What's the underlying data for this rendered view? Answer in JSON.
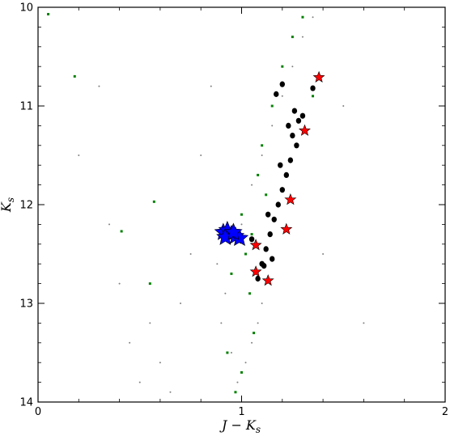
{
  "chart_data": {
    "type": "scatter",
    "title": "",
    "xlabel": "J − K",
    "xlabel_sub": "s",
    "ylabel": "K",
    "ylabel_sub": "s",
    "xlim": [
      0,
      2
    ],
    "ylim": [
      14,
      10
    ],
    "y_inverted": true,
    "grid": false,
    "legend": "none",
    "x_ticks": [
      0,
      1,
      2
    ],
    "y_ticks": [
      10,
      11,
      12,
      13,
      14
    ],
    "colors": {
      "field": "#808080",
      "members": "#008000",
      "black_stars": "#000000",
      "red_stars": "#ff0000",
      "clump": "#0000ff"
    },
    "series": [
      {
        "marker": "small-dot",
        "color": "#808080",
        "points": [
          [
            0.98,
            13.8
          ],
          [
            1.02,
            13.6
          ],
          [
            1.05,
            13.4
          ],
          [
            1.08,
            13.2
          ],
          [
            1.1,
            13.0
          ],
          [
            1.12,
            12.8
          ],
          [
            0.95,
            13.5
          ],
          [
            0.9,
            13.2
          ],
          [
            0.92,
            12.9
          ],
          [
            0.88,
            12.6
          ],
          [
            1.0,
            12.2
          ],
          [
            1.05,
            11.8
          ],
          [
            1.1,
            11.5
          ],
          [
            1.15,
            11.2
          ],
          [
            1.2,
            10.9
          ],
          [
            1.25,
            10.6
          ],
          [
            1.3,
            10.3
          ],
          [
            1.35,
            10.1
          ],
          [
            0.6,
            13.6
          ],
          [
            0.55,
            13.2
          ],
          [
            0.5,
            13.8
          ],
          [
            0.45,
            13.4
          ],
          [
            0.65,
            13.9
          ],
          [
            0.7,
            13.0
          ],
          [
            0.4,
            12.8
          ],
          [
            0.35,
            12.2
          ],
          [
            0.8,
            11.5
          ],
          [
            0.85,
            10.8
          ],
          [
            1.4,
            12.5
          ],
          [
            1.5,
            11.0
          ],
          [
            0.2,
            11.5
          ],
          [
            0.3,
            10.8
          ],
          [
            1.6,
            13.2
          ],
          [
            0.75,
            12.5
          ]
        ]
      },
      {
        "marker": "square-dot",
        "color": "#008000",
        "points": [
          [
            0.05,
            10.07
          ],
          [
            0.18,
            10.7
          ],
          [
            1.0,
            12.1
          ],
          [
            1.02,
            12.5
          ],
          [
            1.04,
            12.9
          ],
          [
            1.06,
            13.3
          ],
          [
            1.0,
            13.7
          ],
          [
            0.97,
            13.9
          ],
          [
            1.08,
            11.7
          ],
          [
            1.1,
            11.4
          ],
          [
            1.15,
            11.0
          ],
          [
            1.2,
            10.6
          ],
          [
            1.25,
            10.3
          ],
          [
            1.3,
            10.1
          ],
          [
            0.95,
            12.7
          ],
          [
            1.05,
            12.3
          ],
          [
            0.57,
            11.97
          ],
          [
            0.41,
            12.27
          ],
          [
            0.55,
            12.8
          ],
          [
            0.93,
            13.5
          ],
          [
            1.12,
            11.9
          ],
          [
            1.35,
            10.9
          ]
        ]
      },
      {
        "marker": "black-star",
        "color": "#000000",
        "points": [
          [
            1.26,
            11.05
          ],
          [
            1.28,
            11.15
          ],
          [
            1.25,
            11.3
          ],
          [
            1.27,
            11.4
          ],
          [
            1.24,
            11.55
          ],
          [
            1.22,
            11.7
          ],
          [
            1.2,
            11.85
          ],
          [
            1.18,
            12.0
          ],
          [
            1.16,
            12.15
          ],
          [
            1.14,
            12.3
          ],
          [
            1.12,
            12.45
          ],
          [
            1.1,
            12.6
          ],
          [
            1.08,
            12.75
          ],
          [
            1.13,
            12.1
          ],
          [
            1.19,
            11.6
          ],
          [
            1.23,
            11.2
          ],
          [
            1.17,
            10.88
          ],
          [
            1.3,
            11.1
          ],
          [
            1.35,
            10.82
          ],
          [
            1.2,
            10.78
          ],
          [
            1.15,
            12.55
          ],
          [
            1.05,
            12.35
          ],
          [
            1.11,
            12.62
          ]
        ]
      },
      {
        "marker": "red-star",
        "color": "#ff0000",
        "points": [
          [
            1.38,
            10.71
          ],
          [
            1.31,
            11.25
          ],
          [
            1.24,
            11.95
          ],
          [
            1.22,
            12.25
          ],
          [
            1.07,
            12.41
          ],
          [
            1.13,
            12.77
          ],
          [
            1.07,
            12.68
          ]
        ]
      },
      {
        "marker": "blue-star",
        "color": "#0000ff",
        "points": [
          [
            0.91,
            12.28
          ],
          [
            0.93,
            12.26
          ],
          [
            0.95,
            12.3
          ],
          [
            0.97,
            12.32
          ],
          [
            0.99,
            12.34
          ],
          [
            0.92,
            12.33
          ],
          [
            0.96,
            12.28
          ]
        ]
      }
    ]
  }
}
